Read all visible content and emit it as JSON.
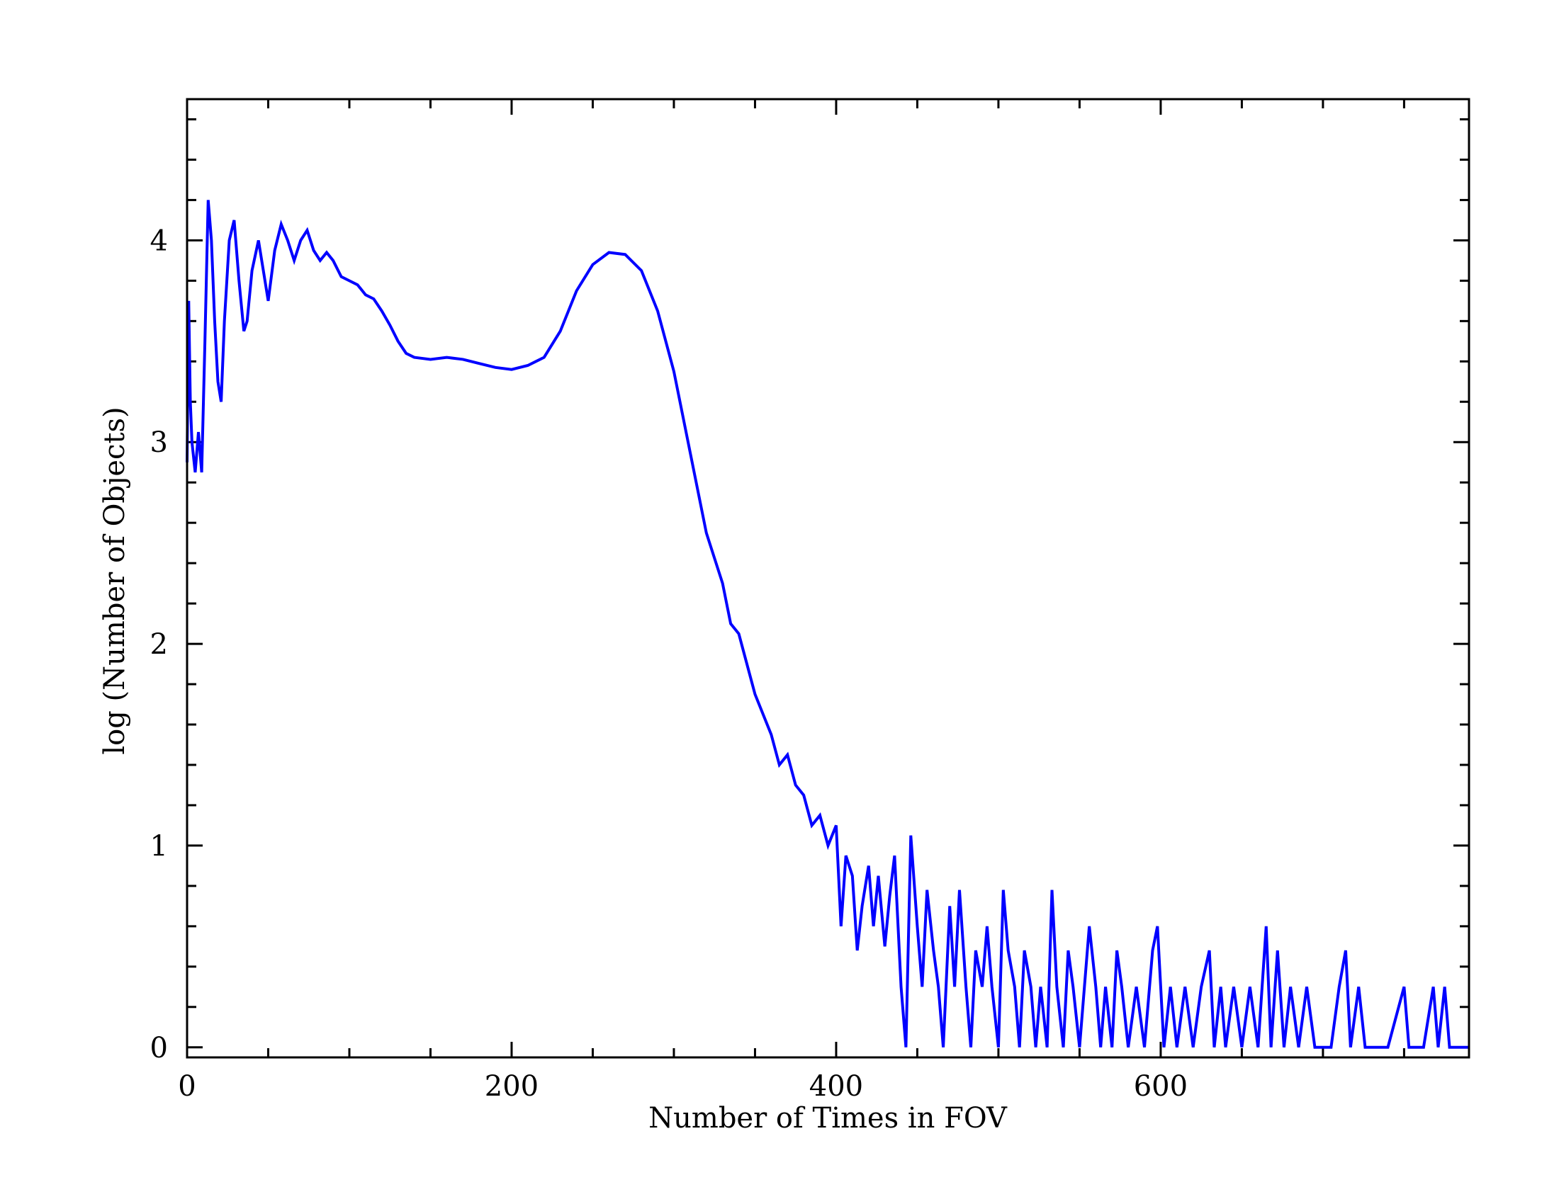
{
  "chart_data": {
    "type": "line",
    "x_label": "Number of Times in FOV",
    "y_label": "log (Number of Objects)",
    "color": "#0000ff",
    "xlim": [
      0,
      790
    ],
    "xticks": [
      0,
      200,
      400,
      600
    ],
    "x_minor_ticks": [
      50,
      100,
      150,
      250,
      300,
      350,
      450,
      500,
      550,
      650,
      700,
      750
    ],
    "ylim": [
      -0.05,
      4.7
    ],
    "yticks": [
      0,
      1,
      2,
      3,
      4
    ],
    "y_minor_ticks": [
      0.2,
      0.4,
      0.6,
      0.8,
      1.2,
      1.4,
      1.6,
      1.8,
      2.2,
      2.4,
      2.6,
      2.8,
      3.2,
      3.4,
      3.6,
      3.8,
      4.2,
      4.4,
      4.6
    ],
    "x": [
      0,
      1,
      2,
      3,
      5,
      7,
      9,
      11,
      13,
      15,
      17,
      19,
      21,
      23,
      26,
      29,
      32,
      35,
      37,
      40,
      44,
      47,
      50,
      54,
      58,
      62,
      66,
      70,
      74,
      78,
      82,
      86,
      90,
      95,
      100,
      105,
      110,
      115,
      120,
      125,
      130,
      135,
      140,
      150,
      160,
      170,
      180,
      190,
      200,
      210,
      220,
      230,
      240,
      250,
      260,
      270,
      280,
      290,
      300,
      310,
      320,
      330,
      335,
      340,
      345,
      350,
      355,
      360,
      365,
      370,
      375,
      380,
      385,
      390,
      395,
      400,
      403,
      406,
      410,
      413,
      416,
      420,
      423,
      426,
      430,
      433,
      436,
      440,
      443,
      446,
      450,
      453,
      456,
      460,
      463,
      466,
      470,
      473,
      476,
      480,
      483,
      486,
      490,
      493,
      496,
      500,
      503,
      506,
      510,
      513,
      516,
      520,
      523,
      526,
      530,
      533,
      536,
      540,
      543,
      546,
      550,
      553,
      556,
      560,
      563,
      566,
      570,
      573,
      576,
      580,
      585,
      590,
      595,
      598,
      602,
      606,
      610,
      615,
      620,
      625,
      630,
      633,
      637,
      640,
      645,
      650,
      655,
      660,
      665,
      668,
      672,
      676,
      680,
      685,
      690,
      695,
      700,
      705,
      710,
      714,
      717,
      722,
      726,
      735,
      740,
      750,
      753,
      757,
      762,
      768,
      771,
      775,
      778,
      785,
      790
    ],
    "values": [
      2.9,
      3.7,
      3.2,
      3.0,
      2.85,
      3.05,
      2.85,
      3.5,
      4.2,
      4.0,
      3.6,
      3.3,
      3.2,
      3.6,
      4.0,
      4.1,
      3.8,
      3.55,
      3.6,
      3.85,
      4.0,
      3.85,
      3.7,
      3.95,
      4.08,
      4.0,
      3.9,
      4.0,
      4.05,
      3.95,
      3.9,
      3.94,
      3.9,
      3.82,
      3.8,
      3.78,
      3.73,
      3.71,
      3.65,
      3.58,
      3.5,
      3.44,
      3.42,
      3.41,
      3.42,
      3.41,
      3.39,
      3.37,
      3.36,
      3.38,
      3.42,
      3.55,
      3.75,
      3.88,
      3.94,
      3.93,
      3.85,
      3.65,
      3.35,
      2.95,
      2.55,
      2.3,
      2.1,
      2.05,
      1.9,
      1.75,
      1.65,
      1.55,
      1.4,
      1.45,
      1.3,
      1.25,
      1.1,
      1.15,
      1.0,
      1.1,
      0.6,
      0.95,
      0.85,
      0.48,
      0.7,
      0.9,
      0.6,
      0.85,
      0.5,
      0.75,
      0.95,
      0.3,
      0,
      1.05,
      0.6,
      0.3,
      0.78,
      0.48,
      0.3,
      0,
      0.7,
      0.3,
      0.78,
      0.3,
      0,
      0.48,
      0.3,
      0.6,
      0.3,
      0,
      0.78,
      0.48,
      0.3,
      0,
      0.48,
      0.3,
      0,
      0.3,
      0,
      0.78,
      0.3,
      0,
      0.48,
      0.3,
      0,
      0.3,
      0.6,
      0.3,
      0,
      0.3,
      0,
      0.48,
      0.3,
      0,
      0.3,
      0,
      0.48,
      0.6,
      0,
      0.3,
      0,
      0.3,
      0,
      0.3,
      0.48,
      0,
      0.3,
      0,
      0.3,
      0,
      0.3,
      0,
      0.6,
      0,
      0.48,
      0,
      0.3,
      0,
      0.3,
      0,
      0,
      0,
      0.3,
      0.48,
      0,
      0.3,
      0,
      0,
      0,
      0.3,
      0,
      0,
      0,
      0.3,
      0,
      0.3,
      0,
      0,
      0
    ]
  }
}
